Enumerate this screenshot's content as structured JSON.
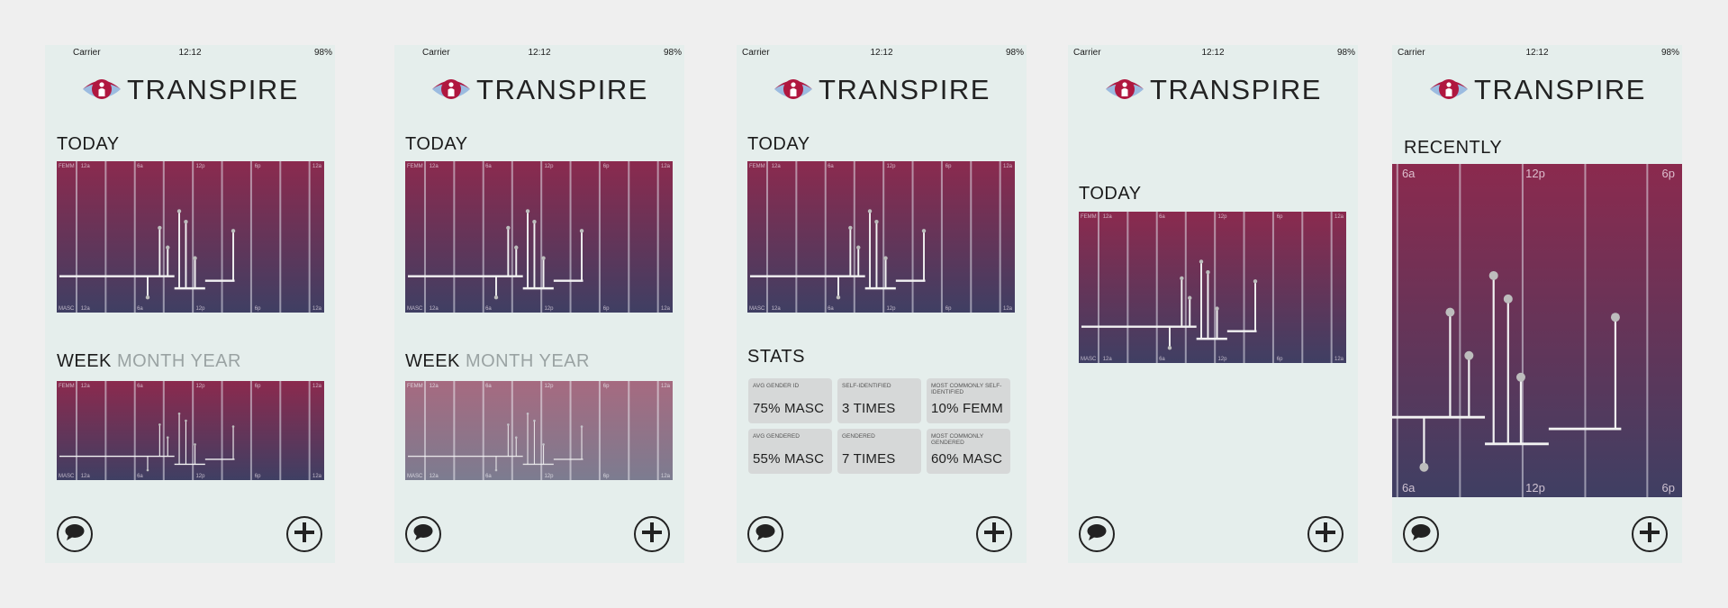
{
  "status": {
    "carrier": "Carrier",
    "time": "12:12",
    "battery": "98%"
  },
  "brand": "TRANSPIRE",
  "sections": {
    "today": "TODAY",
    "week": "WEEK",
    "month": "MONTH",
    "year": "YEAR",
    "stats": "STATS",
    "recently": "RECENTLY"
  },
  "chart_labels": {
    "femm": "FEMM",
    "masc": "MASC",
    "day_ticks": [
      "12a",
      "6a",
      "12p",
      "6p",
      "12a"
    ],
    "recent_ticks": [
      "6a",
      "12p",
      "6p"
    ]
  },
  "stats": [
    {
      "label": "AVG GENDER ID",
      "value": "75% MASC"
    },
    {
      "label": "SELF-IDENTIFIED",
      "value": "3 TIMES"
    },
    {
      "label": "MOST COMMONLY SELF-IDENTIFIED",
      "value": "10% FEMM"
    },
    {
      "label": "AVG GENDERED",
      "value": "55% MASC"
    },
    {
      "label": "GENDERED",
      "value": "7 TIMES"
    },
    {
      "label": "MOST COMMONLY GENDERED",
      "value": "60% MASC"
    }
  ],
  "icons": {
    "comment": "speech-bubble-icon",
    "add": "plus-icon",
    "logo": "eye-person-icon"
  },
  "colors": {
    "femm_top": "#8b2a4e",
    "masc_bottom": "#3f3f63",
    "logo_red": "#b0173f",
    "logo_blue": "#9bbbe0",
    "background": "#e5eeec"
  }
}
